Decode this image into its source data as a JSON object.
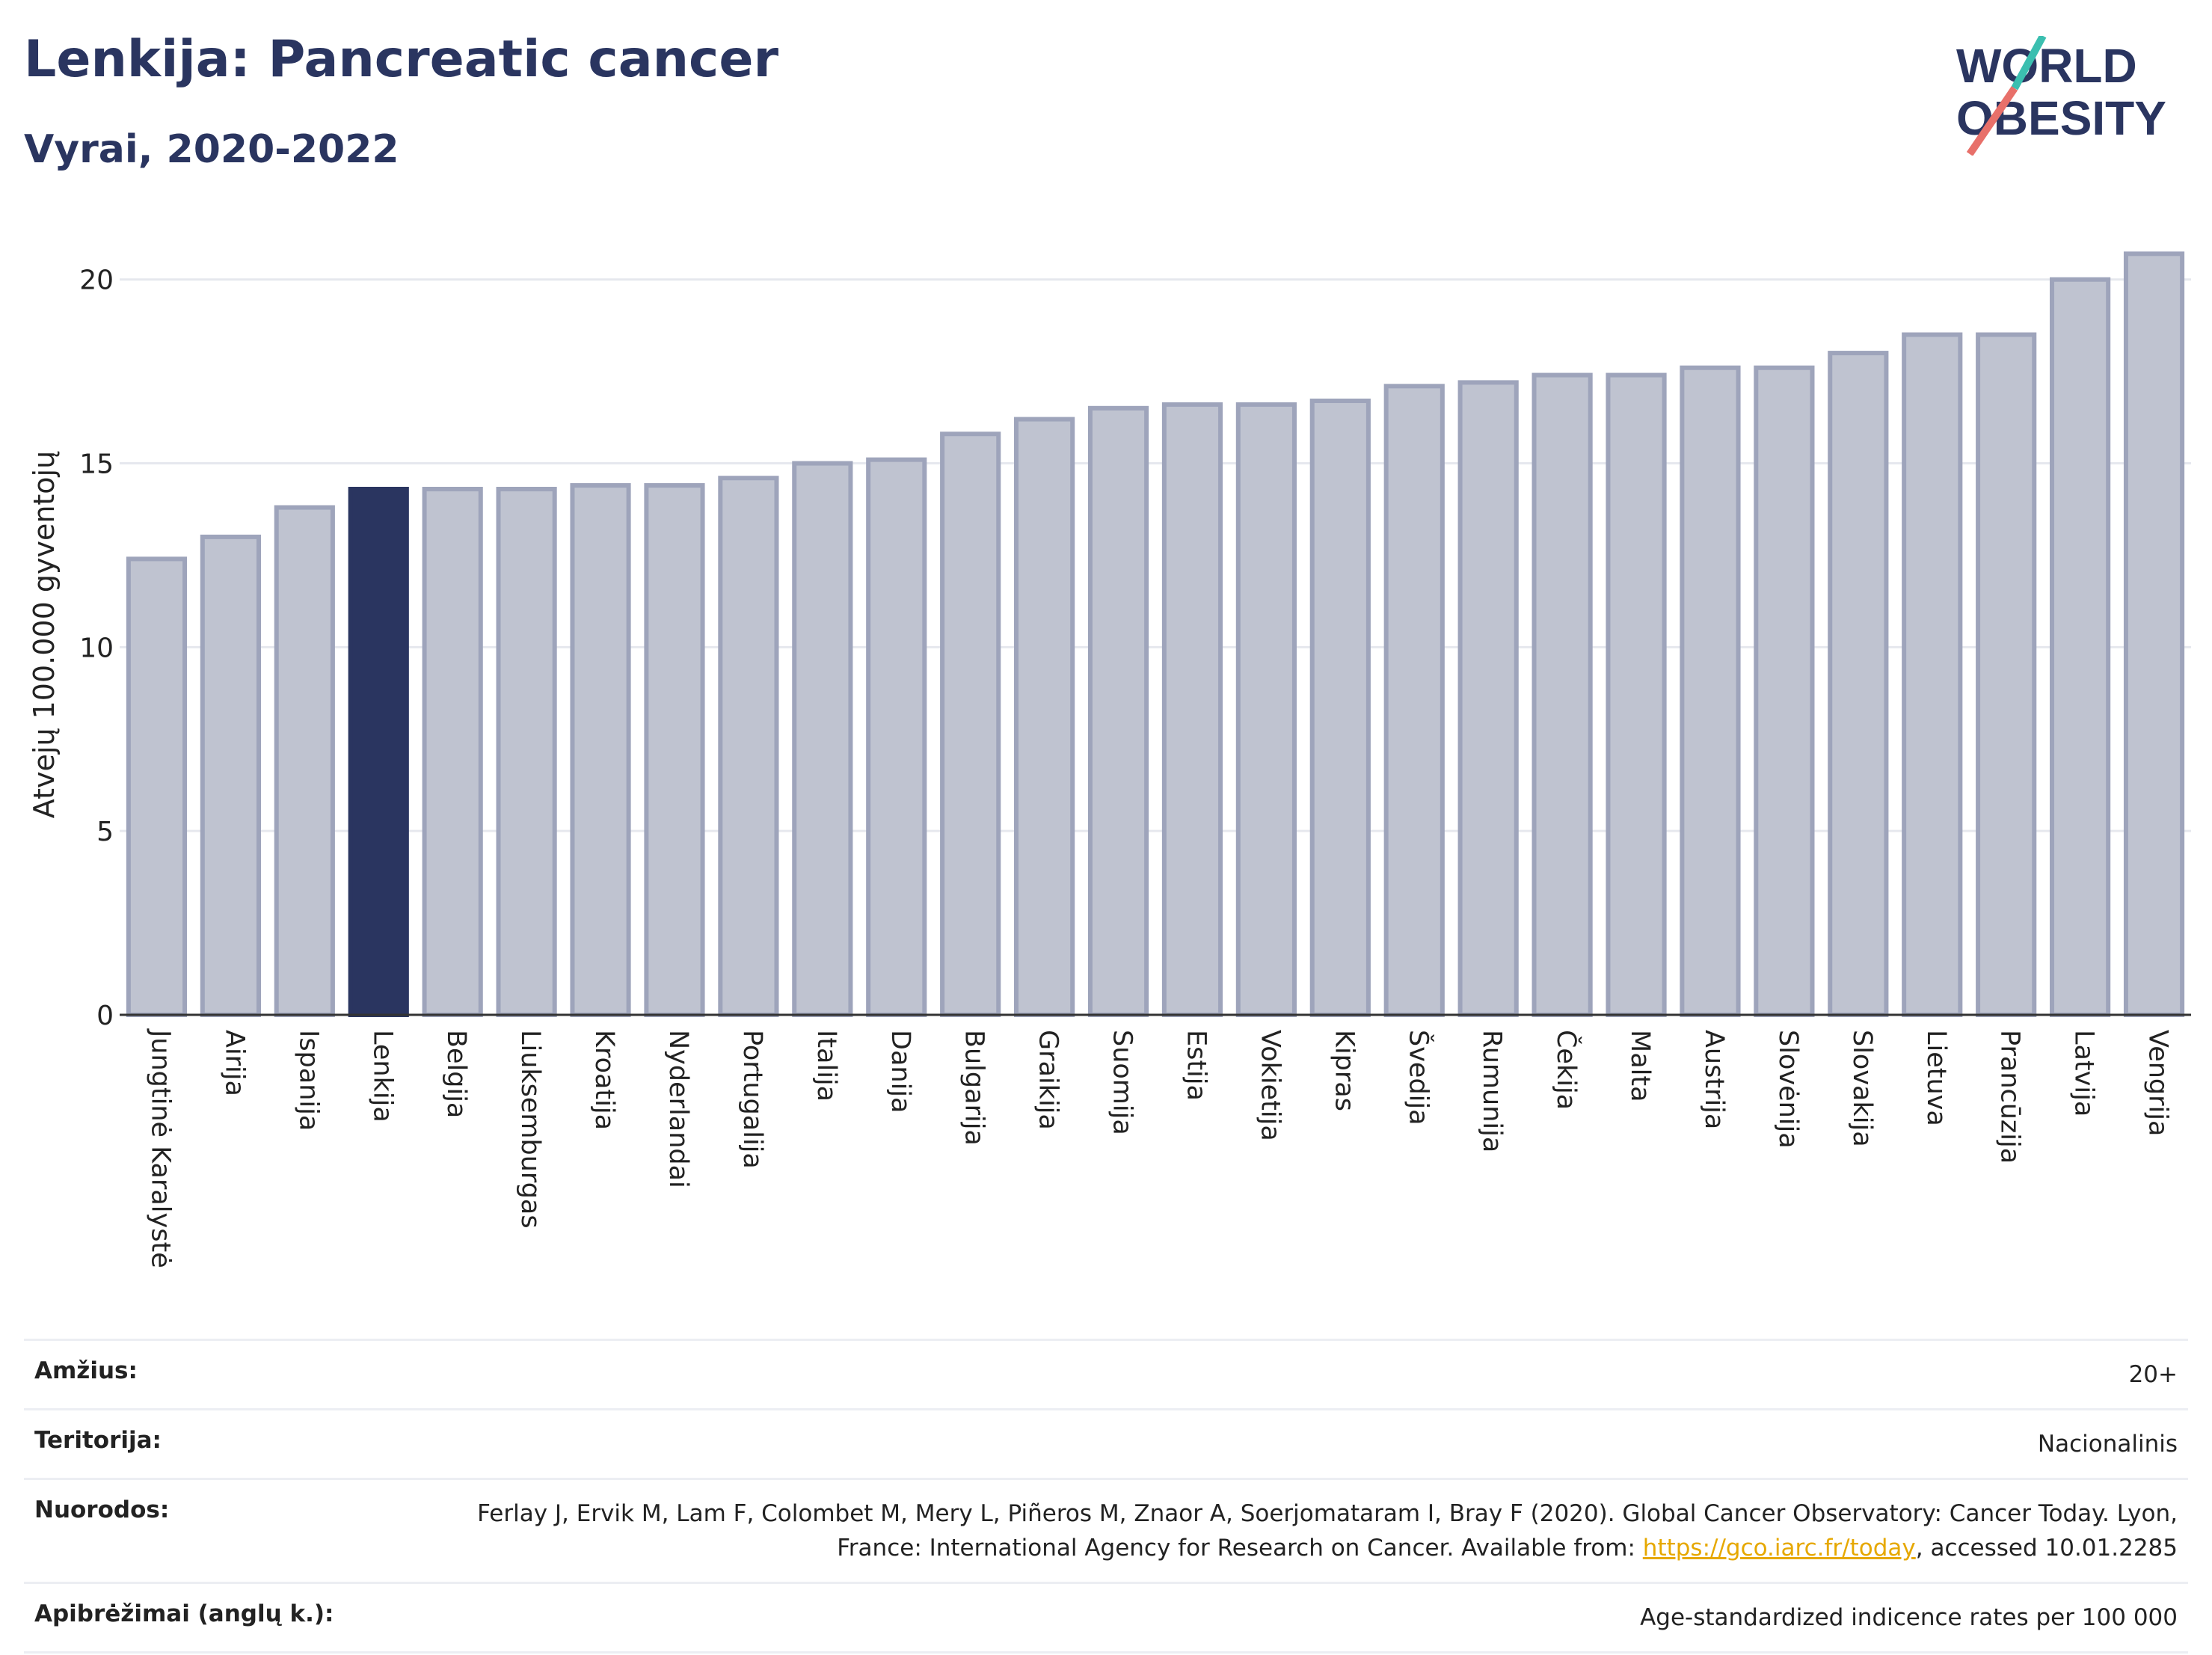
{
  "header": {
    "title": "Lenkija: Pancreatic cancer",
    "subtitle": "Vyrai, 2020-2022"
  },
  "logo": {
    "line1": "WORLD",
    "line2": "OBESITY"
  },
  "chart_data": {
    "type": "bar",
    "ylabel": "Atvejų 100.000 gyventojų",
    "xlabel": "",
    "ylim": [
      0,
      21.5
    ],
    "yticks": [
      0,
      5,
      10,
      15,
      20
    ],
    "grid": true,
    "highlight": "Lenkija",
    "colors": {
      "default": "#bfc3d0",
      "default_border": "#9ea4bb",
      "highlight": "#2a3560"
    },
    "categories": [
      "Jungtinė Karalystė",
      "Airija",
      "Ispanija",
      "Lenkija",
      "Belgija",
      "Liuksemburgas",
      "Kroatija",
      "Nyderlandai",
      "Portugalija",
      "Italija",
      "Danija",
      "Bulgarija",
      "Graikija",
      "Suomija",
      "Estija",
      "Vokietija",
      "Kipras",
      "Švedija",
      "Rumunija",
      "Čekija",
      "Malta",
      "Austrija",
      "Slovėnija",
      "Slovakija",
      "Lietuva",
      "Prancūzija",
      "Latvija",
      "Vengrija"
    ],
    "values": [
      12.4,
      13.0,
      13.8,
      14.3,
      14.3,
      14.3,
      14.4,
      14.4,
      14.6,
      15.0,
      15.1,
      15.8,
      16.2,
      16.5,
      16.6,
      16.6,
      16.7,
      17.1,
      17.2,
      17.4,
      17.4,
      17.6,
      17.6,
      18.0,
      18.5,
      18.5,
      20.0,
      20.7
    ]
  },
  "meta": {
    "age_label": "Amžius:",
    "age_value": "20+",
    "territory_label": "Teritorija:",
    "territory_value": "Nacionalinis",
    "refs_label": "Nuorodos:",
    "refs_text_1": "Ferlay J, Ervik M, Lam F, Colombet M, Mery L, Piñeros M, Znaor A, Soerjomataram I, Bray F (2020). Global Cancer Observatory: Cancer Today. Lyon, France: International Agency for Research on Cancer. Available from: ",
    "refs_link": "https://gco.iarc.fr/today",
    "refs_text_2": ", accessed 10.01.2285",
    "defs_label": "Apibrėžimai (anglų k.):",
    "defs_value": "Age-standardized indicence rates per 100 000"
  }
}
